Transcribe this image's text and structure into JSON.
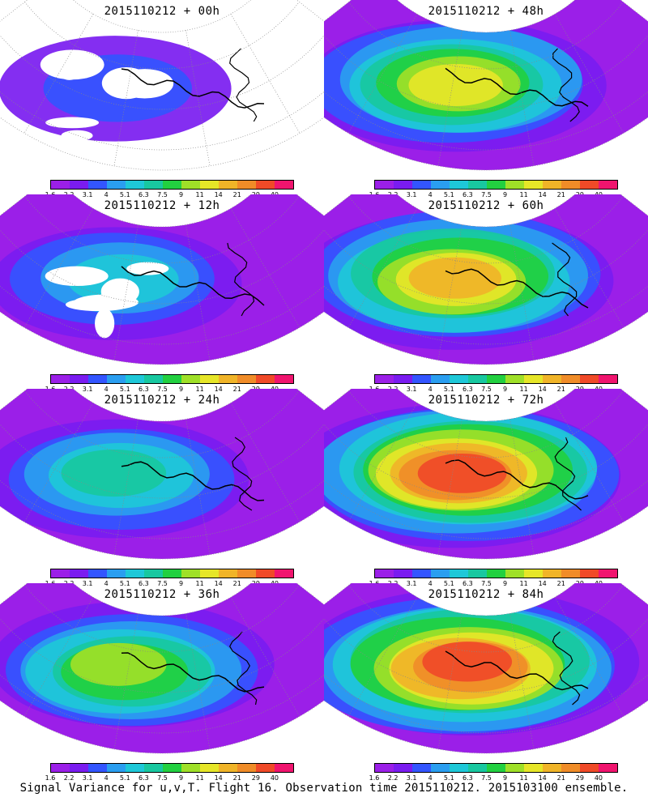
{
  "panels": [
    {
      "title": "2015110212 + 00h",
      "intensity": 0.15
    },
    {
      "title": "2015110212 + 48h",
      "intensity": 0.62
    },
    {
      "title": "2015110212 + 12h",
      "intensity": 0.28
    },
    {
      "title": "2015110212 + 60h",
      "intensity": 0.72
    },
    {
      "title": "2015110212 + 24h",
      "intensity": 0.38
    },
    {
      "title": "2015110212 + 72h",
      "intensity": 0.82
    },
    {
      "title": "2015110212 + 36h",
      "intensity": 0.5
    },
    {
      "title": "2015110212 + 84h",
      "intensity": 0.88
    }
  ],
  "colorbar": {
    "labels": [
      "1.6",
      "2.2",
      "3.1",
      "4",
      "5.1",
      "6.3",
      "7.5",
      "9",
      "11",
      "14",
      "21",
      "29",
      "40"
    ],
    "colors": [
      "#9b1fe8",
      "#7a1cf0",
      "#3355ff",
      "#2a9ef0",
      "#1ec8d8",
      "#18c8a0",
      "#22d040",
      "#9fe028",
      "#e6e628",
      "#f0b428",
      "#f08c28",
      "#f04a28",
      "#f0146e"
    ]
  },
  "caption": "Signal Variance for u,v,T. Flight 16. Observation time 2015110212. 2015103100 ensemble."
}
